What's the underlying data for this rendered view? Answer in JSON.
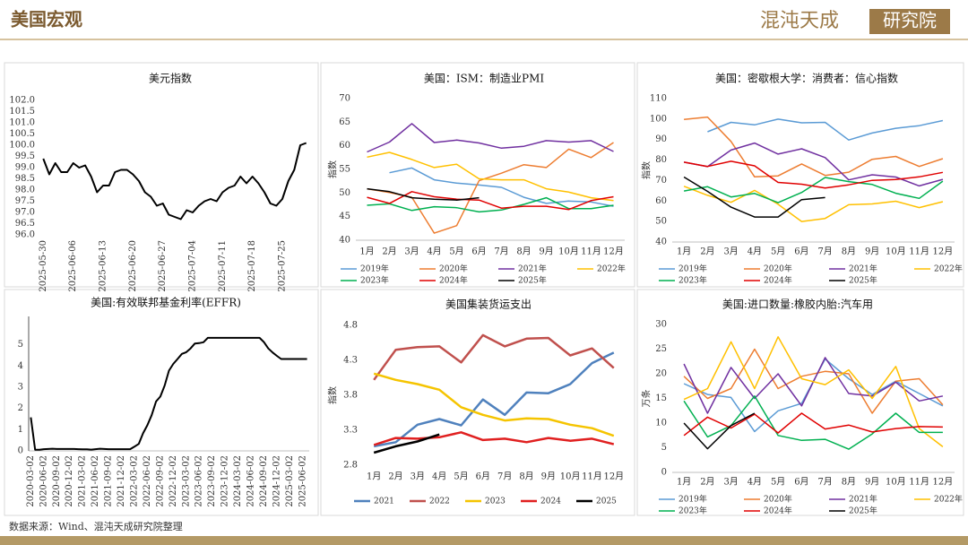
{
  "header": {
    "title": "美国宏观",
    "logo": "混沌天成",
    "logo_suffix": "研究院"
  },
  "source": "数据来源：Wind、混沌天成研究院整理",
  "chart_data": [
    {
      "type": "line",
      "title": "美元指数",
      "color": "#000000",
      "line_width": 2,
      "categories": [
        "2025-05-30",
        null,
        null,
        null,
        null,
        "2025-06-06",
        null,
        null,
        null,
        null,
        "2025-06-13",
        null,
        null,
        null,
        null,
        "2025-06-20",
        null,
        null,
        null,
        null,
        "2025-06-27",
        null,
        null,
        null,
        null,
        "2025-07-04",
        null,
        null,
        null,
        null,
        "2025-07-11",
        null,
        null,
        null,
        null,
        "2025-07-18",
        null,
        null,
        null,
        null,
        "2025-07-25",
        null,
        null,
        null,
        null
      ],
      "values": [
        99.4,
        98.7,
        99.2,
        98.8,
        98.8,
        99.2,
        99.0,
        99.1,
        98.6,
        97.9,
        98.2,
        98.2,
        98.8,
        98.9,
        98.9,
        98.7,
        98.4,
        97.9,
        97.7,
        97.3,
        97.4,
        96.9,
        96.8,
        96.7,
        97.1,
        97.0,
        97.3,
        97.5,
        97.6,
        97.5,
        97.9,
        98.1,
        98.2,
        98.6,
        98.3,
        98.6,
        98.3,
        97.9,
        97.4,
        97.3,
        97.6,
        98.4,
        98.9,
        100.0,
        100.1
      ],
      "ylim": [
        96,
        102
      ],
      "yticks": [
        {
          "value": 96,
          "label": "96.0"
        },
        96.5,
        {
          "value": 97,
          "label": "97.0"
        },
        97.5,
        {
          "value": 98,
          "label": "98.0"
        },
        98.5,
        {
          "value": 99,
          "label": "99.0"
        },
        99.5,
        {
          "value": 100,
          "label": "100.0"
        },
        100.5,
        {
          "value": 101,
          "label": "101.0"
        },
        101.5,
        {
          "value": 102,
          "label": "102.0"
        }
      ]
    },
    {
      "type": "line",
      "title": "美国：ISM：制造业PMI",
      "y_label": "指数",
      "line_width": 1.5,
      "categories": [
        "1月",
        "2月",
        "3月",
        "4月",
        "5月",
        "6月",
        "7月",
        "8月",
        "9月",
        "10月",
        "11月",
        "12月"
      ],
      "ylim": [
        40,
        70
      ],
      "yticks": [
        40,
        45,
        50,
        55,
        60,
        65,
        70
      ],
      "series": [
        {
          "name": "2019年",
          "color": "#5b9bd5",
          "values": [
            null,
            54.3,
            55.3,
            52.8,
            52.1,
            51.7,
            51.2,
            49.1,
            47.8,
            48.3,
            48.1,
            47.2
          ]
        },
        {
          "name": "2020年",
          "color": "#ed7d31",
          "values": [
            50.9,
            50.1,
            49.1,
            41.5,
            43.1,
            52.6,
            54.2,
            56.0,
            55.4,
            59.3,
            57.5,
            60.7
          ]
        },
        {
          "name": "2021年",
          "color": "#7030a0",
          "values": [
            58.7,
            60.8,
            64.7,
            60.7,
            61.2,
            60.6,
            59.5,
            59.9,
            61.1,
            60.8,
            61.1,
            58.8
          ]
        },
        {
          "name": "2022年",
          "color": "#ffc000",
          "values": [
            57.6,
            58.6,
            57.1,
            55.4,
            56.1,
            53.0,
            52.8,
            52.8,
            50.9,
            50.2,
            49.0,
            48.4
          ]
        },
        {
          "name": "2023年",
          "color": "#00b050",
          "values": [
            47.4,
            47.7,
            46.3,
            47.1,
            46.9,
            46.0,
            46.4,
            47.6,
            49.0,
            46.7,
            46.7,
            47.4
          ]
        },
        {
          "name": "2024年",
          "color": "#e00000",
          "values": [
            49.1,
            47.8,
            50.3,
            49.2,
            48.7,
            48.5,
            46.8,
            47.2,
            47.2,
            46.5,
            48.4,
            49.2
          ]
        },
        {
          "name": "2025年",
          "color": "#000000",
          "values": [
            50.9,
            50.3,
            49.0,
            48.7,
            48.5,
            49.0,
            null,
            null,
            null,
            null,
            null,
            null
          ]
        }
      ]
    },
    {
      "type": "line",
      "title": "美国：密歇根大学：消费者：信心指数",
      "y_label": "指数",
      "line_width": 1.5,
      "categories": [
        "1月",
        "2月",
        "3月",
        "4月",
        "5月",
        "6月",
        "7月",
        "8月",
        "9月",
        "10月",
        "11月",
        "12月"
      ],
      "ylim": [
        40,
        110
      ],
      "yticks": [
        40,
        50,
        60,
        70,
        80,
        90,
        100,
        110
      ],
      "series": [
        {
          "name": "2019年",
          "color": "#5b9bd5",
          "values": [
            null,
            93.8,
            98.4,
            97.2,
            100.0,
            98.2,
            98.4,
            89.8,
            93.2,
            95.5,
            96.8,
            99.3
          ]
        },
        {
          "name": "2020年",
          "color": "#ed7d31",
          "values": [
            99.8,
            101.0,
            89.1,
            71.8,
            72.3,
            78.1,
            72.5,
            74.1,
            80.4,
            81.8,
            76.9,
            80.7
          ]
        },
        {
          "name": "2021年",
          "color": "#7030a0",
          "values": [
            79.0,
            76.8,
            84.9,
            88.3,
            82.9,
            85.5,
            81.2,
            70.3,
            72.8,
            71.7,
            67.4,
            70.6
          ]
        },
        {
          "name": "2022年",
          "color": "#ffc000",
          "values": [
            67.2,
            62.8,
            59.4,
            65.2,
            58.4,
            50.0,
            51.5,
            58.2,
            58.6,
            59.9,
            56.8,
            59.7
          ]
        },
        {
          "name": "2023年",
          "color": "#00b050",
          "values": [
            64.9,
            67.0,
            62.0,
            63.7,
            59.2,
            64.2,
            71.5,
            69.5,
            68.1,
            63.8,
            61.3,
            69.7
          ]
        },
        {
          "name": "2024年",
          "color": "#e00000",
          "values": [
            79.0,
            76.9,
            79.4,
            77.2,
            69.1,
            68.2,
            66.4,
            67.9,
            70.1,
            70.5,
            71.8,
            74.0
          ]
        },
        {
          "name": "2025年",
          "color": "#000000",
          "values": [
            71.7,
            64.7,
            57.0,
            52.2,
            52.2,
            60.7,
            61.7,
            null,
            null,
            null,
            null,
            null
          ]
        }
      ]
    },
    {
      "type": "line",
      "title": "美国:有效联邦基金利率(EFFR)",
      "color": "#000000",
      "line_width": 2,
      "categories": [
        "2020-03-02",
        null,
        null,
        "2020-06-02",
        null,
        null,
        "2020-09-02",
        null,
        null,
        "2020-12-02",
        null,
        null,
        "2021-03-02",
        null,
        null,
        "2021-06-02",
        null,
        null,
        "2021-09-02",
        null,
        null,
        "2021-12-02",
        null,
        null,
        "2022-03-02",
        null,
        null,
        "2022-06-02",
        null,
        null,
        "2022-09-02",
        null,
        null,
        "2022-12-02",
        null,
        null,
        "2023-03-02",
        null,
        null,
        "2023-06-02",
        null,
        null,
        "2023-09-02",
        null,
        null,
        "2023-12-02",
        null,
        null,
        "2024-03-02",
        null,
        null,
        "2024-06-02",
        null,
        null,
        "2024-09-02",
        null,
        null,
        "2024-12-02",
        null,
        null,
        "2025-03-02",
        null,
        null,
        "2025-06-02",
        null
      ],
      "values": [
        1.58,
        0.05,
        0.05,
        0.08,
        0.09,
        0.1,
        0.09,
        0.09,
        0.09,
        0.09,
        0.09,
        0.08,
        0.07,
        0.07,
        0.06,
        0.08,
        0.1,
        0.09,
        0.08,
        0.08,
        0.08,
        0.08,
        0.08,
        0.08,
        0.2,
        0.33,
        0.83,
        1.21,
        1.68,
        2.33,
        2.56,
        3.08,
        3.78,
        4.1,
        4.33,
        4.57,
        4.65,
        4.83,
        5.06,
        5.08,
        5.12,
        5.33,
        5.33,
        5.33,
        5.33,
        5.33,
        5.33,
        5.33,
        5.33,
        5.33,
        5.33,
        5.33,
        5.33,
        5.33,
        5.13,
        4.83,
        4.64,
        4.48,
        4.33,
        4.33,
        4.33,
        4.33,
        4.33,
        4.33,
        4.33
      ],
      "ylim": [
        0,
        6
      ],
      "yticks": [
        0,
        1,
        2,
        3,
        4,
        5
      ]
    },
    {
      "type": "line",
      "title": "美国集装货运支出",
      "y_label": "指数",
      "line_width": 2.5,
      "categories": [
        "1月",
        "2月",
        "3月",
        "4月",
        "5月",
        "6月",
        "7月",
        "8月",
        "9月",
        "10月",
        "11月",
        "12月"
      ],
      "ylim": [
        2.8,
        4.8
      ],
      "yticks": [
        2.8,
        3.3,
        3.8,
        4.3,
        4.8
      ],
      "series": [
        {
          "name": "2021",
          "color": "#4f81bd",
          "values": [
            3.07,
            3.13,
            3.38,
            3.46,
            3.37,
            3.74,
            3.52,
            3.84,
            3.83,
            3.96,
            4.26,
            4.41
          ]
        },
        {
          "name": "2022",
          "color": "#c0504d",
          "values": [
            4.02,
            4.45,
            4.49,
            4.5,
            4.27,
            4.66,
            4.5,
            4.61,
            4.62,
            4.37,
            4.47,
            4.19
          ]
        },
        {
          "name": "2023",
          "color": "#f5c400",
          "values": [
            4.11,
            4.02,
            3.96,
            3.88,
            3.63,
            3.52,
            3.44,
            3.47,
            3.46,
            3.38,
            3.33,
            3.22
          ]
        },
        {
          "name": "2024",
          "color": "#e02020",
          "values": [
            3.09,
            3.19,
            3.18,
            3.2,
            3.27,
            3.16,
            3.18,
            3.13,
            3.19,
            3.15,
            3.18,
            3.1
          ]
        },
        {
          "name": "2025",
          "color": "#000000",
          "values": [
            2.98,
            3.07,
            3.14,
            3.24,
            null,
            null,
            null,
            null,
            null,
            null,
            null,
            null
          ]
        }
      ]
    },
    {
      "type": "line",
      "title": "美国:进口数量:橡胶内胎:汽车用",
      "y_label": "万条",
      "line_width": 1.5,
      "categories": [
        "1月",
        "2月",
        "3月",
        "4月",
        "5月",
        "6月",
        "7月",
        "8月",
        "9月",
        "10月",
        "11月",
        "12月"
      ],
      "ylim": [
        0,
        30
      ],
      "yticks": [
        0,
        5,
        10,
        15,
        20,
        25,
        30
      ],
      "series": [
        {
          "name": "2019年",
          "color": "#5b9bd5",
          "values": [
            18,
            15.8,
            15.2,
            8.3,
            12.5,
            14,
            23,
            19,
            15.8,
            18.5,
            16,
            13.5
          ]
        },
        {
          "name": "2020年",
          "color": "#ed7d31",
          "values": [
            19.5,
            15,
            17,
            25,
            17,
            19.5,
            20.5,
            20,
            12,
            18.5,
            19,
            13.7
          ]
        },
        {
          "name": "2021年",
          "color": "#7030a0",
          "values": [
            22,
            12,
            21.3,
            15,
            20,
            13.5,
            23.3,
            16,
            15.5,
            18.3,
            14.5,
            15.5
          ]
        },
        {
          "name": "2022年",
          "color": "#ffc000",
          "values": [
            14.8,
            17,
            26.5,
            17,
            27.5,
            19,
            17.8,
            20.8,
            15,
            21.5,
            8.9,
            5.2
          ]
        },
        {
          "name": "2023年",
          "color": "#00b050",
          "values": [
            14.5,
            7.2,
            9.5,
            15.5,
            7.5,
            6.5,
            6.7,
            4.7,
            7.8,
            12,
            8.1,
            8.1
          ]
        },
        {
          "name": "2024年",
          "color": "#e00000",
          "values": [
            7.5,
            11.2,
            9,
            11.8,
            8,
            12,
            8.8,
            9.6,
            8.2,
            8.9,
            9.3,
            9.2
          ]
        },
        {
          "name": "2025年",
          "color": "#000000",
          "values": [
            10,
            4.8,
            9.5,
            12,
            null,
            null,
            null,
            null,
            null,
            null,
            null,
            null
          ]
        }
      ]
    }
  ]
}
